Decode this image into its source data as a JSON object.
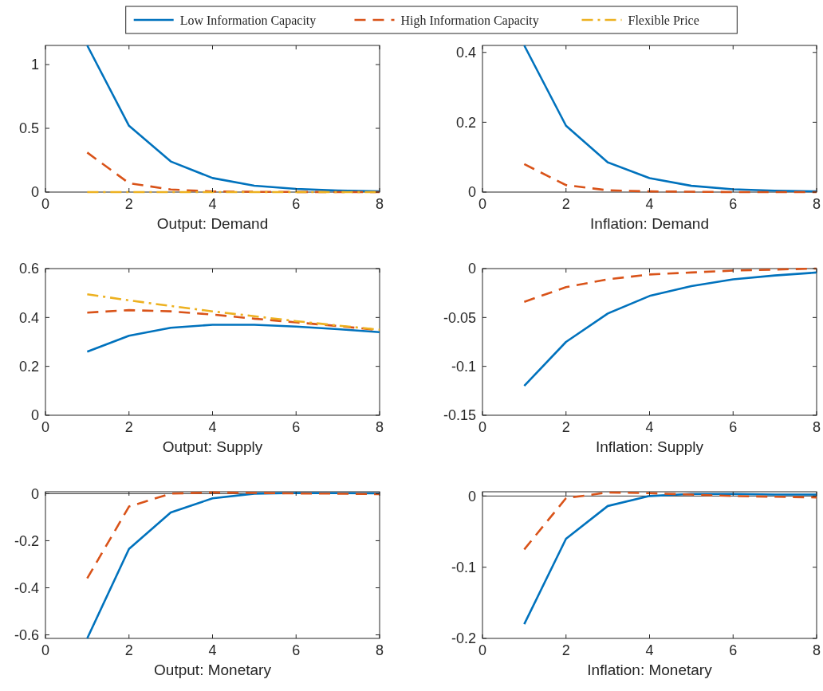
{
  "chart_data": [
    {
      "type": "line",
      "xlabel": "Output: Demand",
      "x": [
        1,
        2,
        3,
        4,
        5,
        6,
        7,
        8
      ],
      "xlim": [
        0,
        8
      ],
      "xticks": [
        0,
        2,
        4,
        6,
        8
      ],
      "ylim": [
        0,
        1.15
      ],
      "yticks": [
        0,
        0.5,
        1
      ],
      "legend": "top",
      "series": [
        {
          "name": "Low Information Capacity",
          "color": "#0072bd",
          "line_style": "solid",
          "values": [
            1.15,
            0.52,
            0.24,
            0.11,
            0.05,
            0.025,
            0.012,
            0.006
          ]
        },
        {
          "name": "High Information Capacity",
          "color": "#d95319",
          "line_style": "dashed",
          "values": [
            0.31,
            0.07,
            0.02,
            0.005,
            0.002,
            0.001,
            0,
            0
          ]
        },
        {
          "name": "Flexible Price",
          "color": "#edb120",
          "line_style": "dashdot",
          "values": [
            0,
            0,
            0,
            0,
            0,
            0,
            0,
            0
          ]
        }
      ]
    },
    {
      "type": "line",
      "xlabel": "Inflation: Demand",
      "x": [
        1,
        2,
        3,
        4,
        5,
        6,
        7,
        8
      ],
      "xlim": [
        0,
        8
      ],
      "xticks": [
        0,
        2,
        4,
        6,
        8
      ],
      "ylim": [
        0,
        0.42
      ],
      "yticks": [
        0,
        0.2,
        0.4
      ],
      "series": [
        {
          "color": "#0072bd",
          "line_style": "solid",
          "values": [
            0.42,
            0.19,
            0.085,
            0.04,
            0.018,
            0.008,
            0.004,
            0.002
          ]
        },
        {
          "color": "#d95319",
          "line_style": "dashed",
          "values": [
            0.08,
            0.02,
            0.005,
            0.002,
            0.001,
            0,
            0,
            0
          ]
        }
      ]
    },
    {
      "type": "line",
      "xlabel": "Output: Supply",
      "x": [
        1,
        2,
        3,
        4,
        5,
        6,
        7,
        8
      ],
      "xlim": [
        0,
        8
      ],
      "xticks": [
        0,
        2,
        4,
        6,
        8
      ],
      "ylim": [
        0,
        0.6
      ],
      "yticks": [
        0,
        0.2,
        0.4,
        0.6
      ],
      "series": [
        {
          "color": "#0072bd",
          "line_style": "solid",
          "values": [
            0.26,
            0.325,
            0.358,
            0.37,
            0.37,
            0.363,
            0.352,
            0.34
          ]
        },
        {
          "color": "#d95319",
          "line_style": "dashed",
          "values": [
            0.42,
            0.43,
            0.425,
            0.412,
            0.395,
            0.38,
            0.365,
            0.348
          ]
        },
        {
          "color": "#edb120",
          "line_style": "dashdot",
          "values": [
            0.495,
            0.47,
            0.447,
            0.425,
            0.405,
            0.385,
            0.367,
            0.35
          ]
        }
      ]
    },
    {
      "type": "line",
      "xlabel": "Inflation: Supply",
      "x": [
        1,
        2,
        3,
        4,
        5,
        6,
        7,
        8
      ],
      "xlim": [
        0,
        8
      ],
      "xticks": [
        0,
        2,
        4,
        6,
        8
      ],
      "ylim": [
        -0.15,
        0
      ],
      "yticks": [
        -0.15,
        -0.1,
        -0.05,
        0
      ],
      "series": [
        {
          "color": "#0072bd",
          "line_style": "solid",
          "values": [
            -0.12,
            -0.075,
            -0.046,
            -0.028,
            -0.018,
            -0.011,
            -0.007,
            -0.004
          ]
        },
        {
          "color": "#d95319",
          "line_style": "dashed",
          "values": [
            -0.034,
            -0.019,
            -0.011,
            -0.006,
            -0.004,
            -0.002,
            -0.001,
            0
          ]
        }
      ]
    },
    {
      "type": "line",
      "xlabel": "Output: Monetary",
      "x": [
        1,
        2,
        3,
        4,
        5,
        6,
        7,
        8
      ],
      "xlim": [
        0,
        8
      ],
      "xticks": [
        0,
        2,
        4,
        6,
        8
      ],
      "ylim": [
        -0.615,
        0.008
      ],
      "yticks": [
        -0.6,
        -0.4,
        -0.2,
        0
      ],
      "ref_lines": [
        {
          "axis": "y",
          "value": 0,
          "color": "#000000"
        }
      ],
      "series": [
        {
          "color": "#0072bd",
          "line_style": "solid",
          "values": [
            -0.615,
            -0.235,
            -0.08,
            -0.02,
            0,
            0.003,
            0.002,
            0.001
          ]
        },
        {
          "color": "#d95319",
          "line_style": "dashed",
          "values": [
            -0.36,
            -0.055,
            0,
            0.005,
            0.003,
            0.001,
            0,
            -0.002
          ]
        }
      ]
    },
    {
      "type": "line",
      "xlabel": "Inflation: Monetary",
      "x": [
        1,
        2,
        3,
        4,
        5,
        6,
        7,
        8
      ],
      "xlim": [
        0,
        8
      ],
      "xticks": [
        0,
        2,
        4,
        6,
        8
      ],
      "ylim": [
        -0.2,
        0.006
      ],
      "yticks": [
        -0.2,
        -0.1,
        0
      ],
      "ref_lines": [
        {
          "axis": "y",
          "value": 0,
          "color": "#000000"
        }
      ],
      "series": [
        {
          "color": "#0072bd",
          "line_style": "solid",
          "values": [
            -0.18,
            -0.06,
            -0.014,
            0,
            0.003,
            0.003,
            0.002,
            0.002
          ]
        },
        {
          "color": "#d95319",
          "line_style": "dashed",
          "values": [
            -0.075,
            -0.003,
            0.005,
            0.004,
            0.002,
            0,
            -0.001,
            -0.002
          ]
        }
      ]
    }
  ]
}
